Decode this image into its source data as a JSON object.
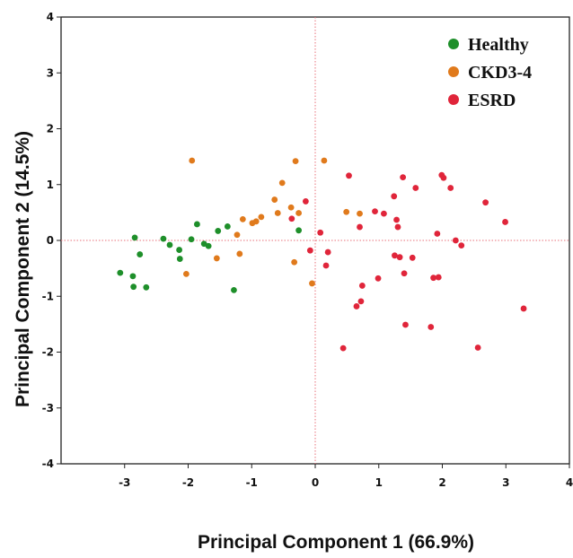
{
  "chart_data": {
    "type": "scatter",
    "xlabel": "Principal Component  1  (66.9%)",
    "ylabel": "Principal Component  2  (14.5%)",
    "xlim": [
      -4,
      4
    ],
    "ylim": [
      -4,
      4
    ],
    "xticks": [
      -3,
      -2,
      -1,
      0,
      1,
      2,
      3,
      4
    ],
    "yticks": [
      -4,
      -3,
      -2,
      -1,
      0,
      1,
      2,
      3,
      4
    ],
    "grid": false,
    "reference_lines": {
      "x": 0,
      "y": 0,
      "style": "dotted",
      "color": "#e8707a"
    },
    "legend_position": "top-right",
    "series": [
      {
        "name": "Healthy",
        "color": "#1e8f2a",
        "points": [
          [
            -3.07,
            -0.58
          ],
          [
            -2.87,
            -0.64
          ],
          [
            -2.86,
            -0.83
          ],
          [
            -2.84,
            0.05
          ],
          [
            -2.76,
            -0.25
          ],
          [
            -2.66,
            -0.84
          ],
          [
            -2.39,
            0.03
          ],
          [
            -2.29,
            -0.08
          ],
          [
            -2.14,
            -0.17
          ],
          [
            -2.13,
            -0.33
          ],
          [
            -1.95,
            0.02
          ],
          [
            -1.86,
            0.29
          ],
          [
            -1.75,
            -0.06
          ],
          [
            -1.68,
            -0.1
          ],
          [
            -1.53,
            0.17
          ],
          [
            -1.38,
            0.25
          ],
          [
            -1.28,
            -0.89
          ],
          [
            -0.26,
            0.18
          ]
        ]
      },
      {
        "name": "CKD3-4",
        "color": "#e07a1c",
        "points": [
          [
            -2.03,
            -0.6
          ],
          [
            -1.94,
            1.43
          ],
          [
            -1.55,
            -0.32
          ],
          [
            -1.23,
            0.1
          ],
          [
            -1.19,
            -0.24
          ],
          [
            -1.14,
            0.38
          ],
          [
            -0.99,
            0.31
          ],
          [
            -0.93,
            0.34
          ],
          [
            -0.85,
            0.42
          ],
          [
            -0.64,
            0.73
          ],
          [
            -0.59,
            0.49
          ],
          [
            -0.52,
            1.03
          ],
          [
            -0.38,
            0.59
          ],
          [
            -0.33,
            -0.39
          ],
          [
            -0.31,
            1.42
          ],
          [
            -0.26,
            0.49
          ],
          [
            -0.05,
            -0.77
          ],
          [
            0.14,
            1.43
          ],
          [
            0.49,
            0.51
          ],
          [
            0.7,
            0.48
          ]
        ]
      },
      {
        "name": "ESRD",
        "color": "#e0253a",
        "points": [
          [
            -0.37,
            0.39
          ],
          [
            -0.15,
            0.7
          ],
          [
            -0.08,
            -0.18
          ],
          [
            0.08,
            0.14
          ],
          [
            0.17,
            -0.45
          ],
          [
            0.2,
            -0.21
          ],
          [
            0.44,
            -1.93
          ],
          [
            0.53,
            1.16
          ],
          [
            0.65,
            -1.18
          ],
          [
            0.7,
            0.24
          ],
          [
            0.72,
            -1.09
          ],
          [
            0.74,
            -0.81
          ],
          [
            0.94,
            0.52
          ],
          [
            0.99,
            -0.68
          ],
          [
            1.08,
            0.48
          ],
          [
            1.24,
            0.79
          ],
          [
            1.25,
            -0.27
          ],
          [
            1.28,
            0.37
          ],
          [
            1.3,
            0.24
          ],
          [
            1.33,
            -0.3
          ],
          [
            1.38,
            1.13
          ],
          [
            1.4,
            -0.59
          ],
          [
            1.42,
            -1.51
          ],
          [
            1.53,
            -0.31
          ],
          [
            1.58,
            0.94
          ],
          [
            1.82,
            -1.55
          ],
          [
            1.86,
            -0.67
          ],
          [
            1.92,
            0.12
          ],
          [
            1.94,
            -0.66
          ],
          [
            1.99,
            1.17
          ],
          [
            2.02,
            1.12
          ],
          [
            2.13,
            0.94
          ],
          [
            2.21,
            0.0
          ],
          [
            2.3,
            -0.09
          ],
          [
            2.56,
            -1.92
          ],
          [
            2.68,
            0.68
          ],
          [
            2.99,
            0.33
          ],
          [
            3.28,
            -1.22
          ]
        ]
      }
    ]
  }
}
